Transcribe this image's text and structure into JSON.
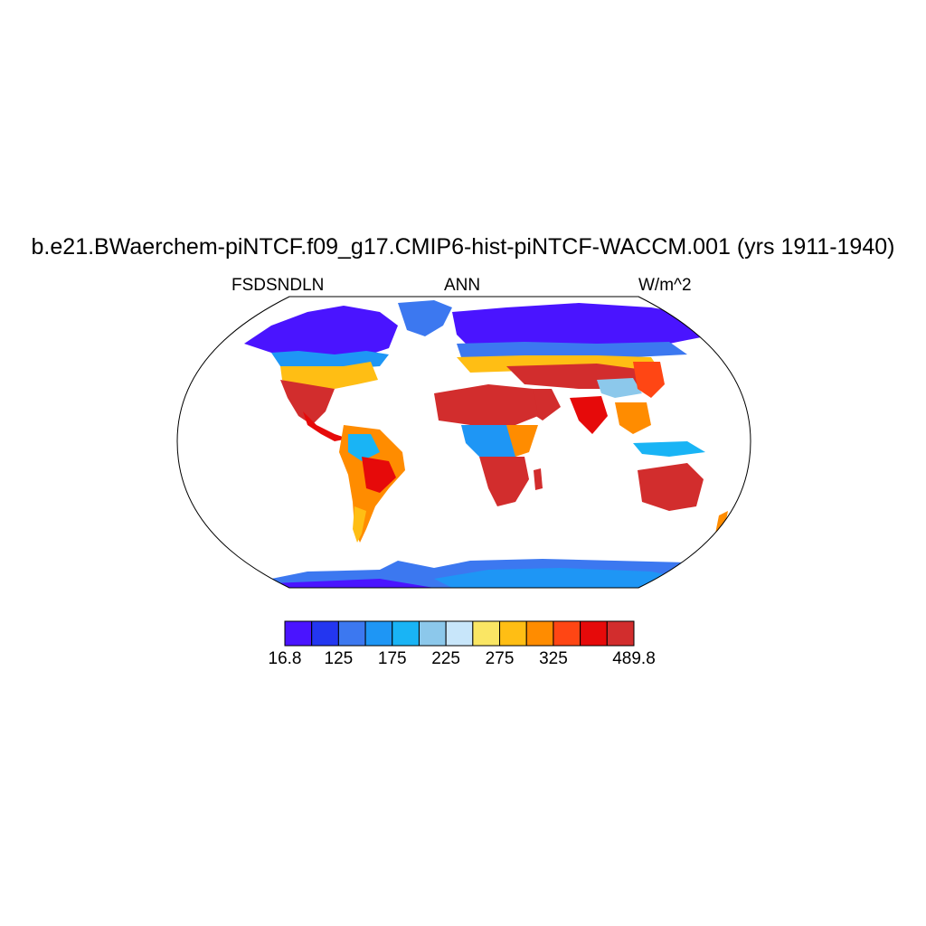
{
  "title": "b.e21.BWaerchem-piNTCF.f09_g17.CMIP6-hist-piNTCF-WACCM.001 (yrs 1911-1940)",
  "left_label": "FSDSNDLN",
  "center_label": "ANN",
  "right_label": "W/m^2",
  "colorbar": {
    "colors": [
      "#4a14ff",
      "#2336f0",
      "#3c78f0",
      "#1e96f5",
      "#19b4f5",
      "#8cc8eb",
      "#c8e6fa",
      "#fae664",
      "#ffbe14",
      "#ff8c00",
      "#ff4614",
      "#e60a0a",
      "#d22d2d"
    ],
    "labels": [
      "16.8",
      "125",
      "175",
      "225",
      "275",
      "325",
      "489.8"
    ]
  },
  "chart_data": {
    "type": "heatmap",
    "variable": "FSDSNDLN",
    "period": "ANN",
    "units": "W/m^2",
    "range": [
      16.8,
      489.8
    ],
    "levels": [
      16.8,
      75,
      125,
      150,
      175,
      200,
      225,
      250,
      275,
      300,
      325,
      350,
      489.8
    ]
  }
}
